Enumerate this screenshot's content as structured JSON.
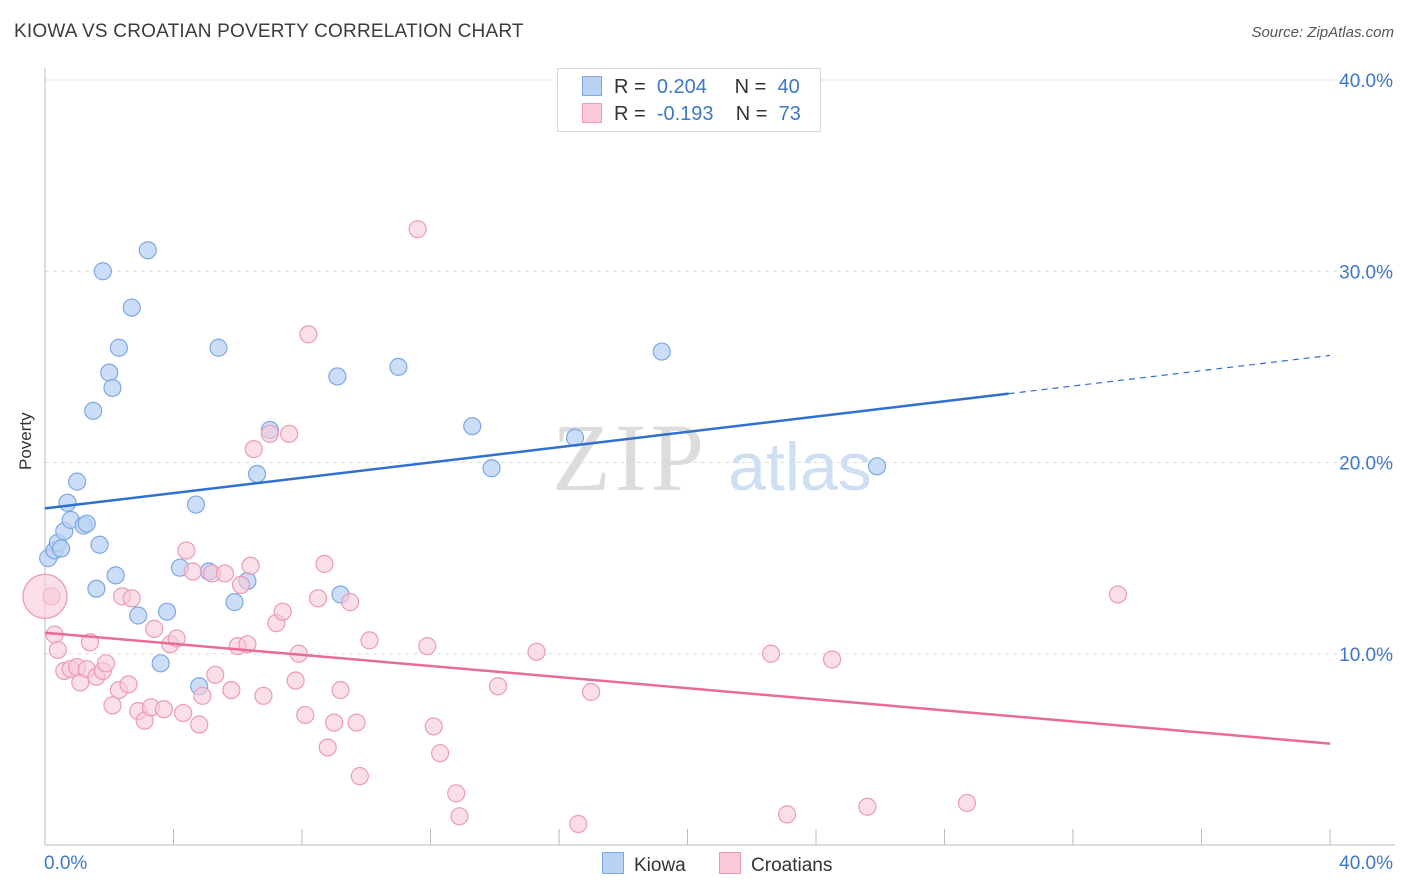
{
  "header": {
    "title": "KIOWA VS CROATIAN POVERTY CORRELATION CHART",
    "source": "Source: ZipAtlas.com"
  },
  "stats_legend": {
    "rows": [
      {
        "r_label": "R =",
        "r_value": "0.204",
        "n_label": "N =",
        "n_value": "40"
      },
      {
        "r_label": "R =",
        "r_value": "-0.193",
        "n_label": "N =",
        "n_value": "73"
      }
    ]
  },
  "bottom_legend": {
    "items": [
      "Kiowa",
      "Croatians"
    ]
  },
  "watermark": {
    "zip": "ZIP",
    "atlas": "atlas"
  },
  "colors": {
    "kiowa_fill": "#b9d2f4",
    "kiowa_stroke": "#7ea8e2",
    "kiowa_line": "#2f6fcf",
    "croatians_fill": "#f9c9d8",
    "croatians_stroke": "#ec9bb6",
    "croatians_line": "#e8699a",
    "tick_label": "#3d78c8"
  },
  "chart_data": {
    "type": "scatter",
    "title": "KIOWA VS CROATIAN POVERTY CORRELATION CHART",
    "xlabel": "",
    "ylabel": "Poverty",
    "xlim": [
      0,
      40
    ],
    "ylim": [
      0,
      40
    ],
    "x_tick_labels": [
      "0.0%",
      "40.0%"
    ],
    "y_ticks": [
      10,
      20,
      30,
      40
    ],
    "y_tick_labels": [
      "10.0%",
      "20.0%",
      "30.0%",
      "40.0%"
    ],
    "grid": true,
    "legend_position": "top-center",
    "series": [
      {
        "name": "Kiowa",
        "trend": {
          "x0": 0,
          "y0": 17.6,
          "x1": 30.0,
          "y1": 23.6,
          "dashed_to_x": 40,
          "dashed_to_y": 25.6
        },
        "points": [
          [
            0.1,
            15.0
          ],
          [
            0.3,
            15.4
          ],
          [
            0.4,
            15.8
          ],
          [
            0.5,
            15.5
          ],
          [
            0.6,
            16.4
          ],
          [
            0.7,
            17.9
          ],
          [
            0.8,
            17.0
          ],
          [
            1.0,
            19.0
          ],
          [
            1.2,
            16.7
          ],
          [
            1.3,
            16.8
          ],
          [
            1.5,
            22.7
          ],
          [
            1.6,
            13.4
          ],
          [
            1.7,
            15.7
          ],
          [
            1.8,
            30.0
          ],
          [
            2.0,
            24.7
          ],
          [
            2.1,
            23.9
          ],
          [
            2.2,
            14.1
          ],
          [
            2.3,
            26.0
          ],
          [
            2.7,
            28.1
          ],
          [
            2.9,
            12.0
          ],
          [
            3.2,
            31.1
          ],
          [
            3.6,
            9.5
          ],
          [
            3.8,
            12.2
          ],
          [
            4.2,
            14.5
          ],
          [
            4.7,
            17.8
          ],
          [
            4.8,
            8.3
          ],
          [
            5.1,
            14.3
          ],
          [
            5.4,
            26.0
          ],
          [
            5.9,
            12.7
          ],
          [
            6.3,
            13.8
          ],
          [
            6.6,
            19.4
          ],
          [
            7.0,
            21.7
          ],
          [
            9.1,
            24.5
          ],
          [
            9.2,
            13.1
          ],
          [
            11.0,
            25.0
          ],
          [
            13.3,
            21.9
          ],
          [
            13.9,
            19.7
          ],
          [
            16.5,
            21.3
          ],
          [
            19.2,
            25.8
          ],
          [
            25.9,
            19.8
          ]
        ]
      },
      {
        "name": "Croatians",
        "trend": {
          "x0": 0,
          "y0": 11.1,
          "x1": 40,
          "y1": 5.3
        },
        "points": [
          [
            0.2,
            13.0
          ],
          [
            0.3,
            11.0
          ],
          [
            0.4,
            10.2
          ],
          [
            0.6,
            9.1
          ],
          [
            0.8,
            9.2
          ],
          [
            1.0,
            9.3
          ],
          [
            1.1,
            8.5
          ],
          [
            1.3,
            9.2
          ],
          [
            1.4,
            10.6
          ],
          [
            1.6,
            8.8
          ],
          [
            1.8,
            9.1
          ],
          [
            1.9,
            9.5
          ],
          [
            2.1,
            7.3
          ],
          [
            2.3,
            8.1
          ],
          [
            2.4,
            13.0
          ],
          [
            2.6,
            8.4
          ],
          [
            2.7,
            12.9
          ],
          [
            2.9,
            7.0
          ],
          [
            3.1,
            6.5
          ],
          [
            3.3,
            7.2
          ],
          [
            3.4,
            11.3
          ],
          [
            3.7,
            7.1
          ],
          [
            3.9,
            10.5
          ],
          [
            4.1,
            10.8
          ],
          [
            4.3,
            6.9
          ],
          [
            4.4,
            15.4
          ],
          [
            4.6,
            14.3
          ],
          [
            4.8,
            6.3
          ],
          [
            4.9,
            7.8
          ],
          [
            5.2,
            14.2
          ],
          [
            5.3,
            8.9
          ],
          [
            5.6,
            14.2
          ],
          [
            5.8,
            8.1
          ],
          [
            6.0,
            10.4
          ],
          [
            6.1,
            13.6
          ],
          [
            6.3,
            10.5
          ],
          [
            6.4,
            14.6
          ],
          [
            6.5,
            20.7
          ],
          [
            6.8,
            7.8
          ],
          [
            7.0,
            21.5
          ],
          [
            7.2,
            11.6
          ],
          [
            7.4,
            12.2
          ],
          [
            7.6,
            21.5
          ],
          [
            7.8,
            8.6
          ],
          [
            7.9,
            10.0
          ],
          [
            8.1,
            6.8
          ],
          [
            8.2,
            26.7
          ],
          [
            8.5,
            12.9
          ],
          [
            8.7,
            14.7
          ],
          [
            8.8,
            5.1
          ],
          [
            9.0,
            6.4
          ],
          [
            9.2,
            8.1
          ],
          [
            9.5,
            12.7
          ],
          [
            9.7,
            6.4
          ],
          [
            9.8,
            3.6
          ],
          [
            10.1,
            10.7
          ],
          [
            11.6,
            32.2
          ],
          [
            11.9,
            10.4
          ],
          [
            12.1,
            6.2
          ],
          [
            12.3,
            4.8
          ],
          [
            12.8,
            2.7
          ],
          [
            12.9,
            1.5
          ],
          [
            14.1,
            8.3
          ],
          [
            15.3,
            10.1
          ],
          [
            16.6,
            1.1
          ],
          [
            17.0,
            8.0
          ],
          [
            22.6,
            10.0
          ],
          [
            23.1,
            1.6
          ],
          [
            24.5,
            9.7
          ],
          [
            25.6,
            2.0
          ],
          [
            28.7,
            2.2
          ],
          [
            33.4,
            13.1
          ],
          [
            0.0,
            13.0
          ]
        ]
      }
    ]
  }
}
